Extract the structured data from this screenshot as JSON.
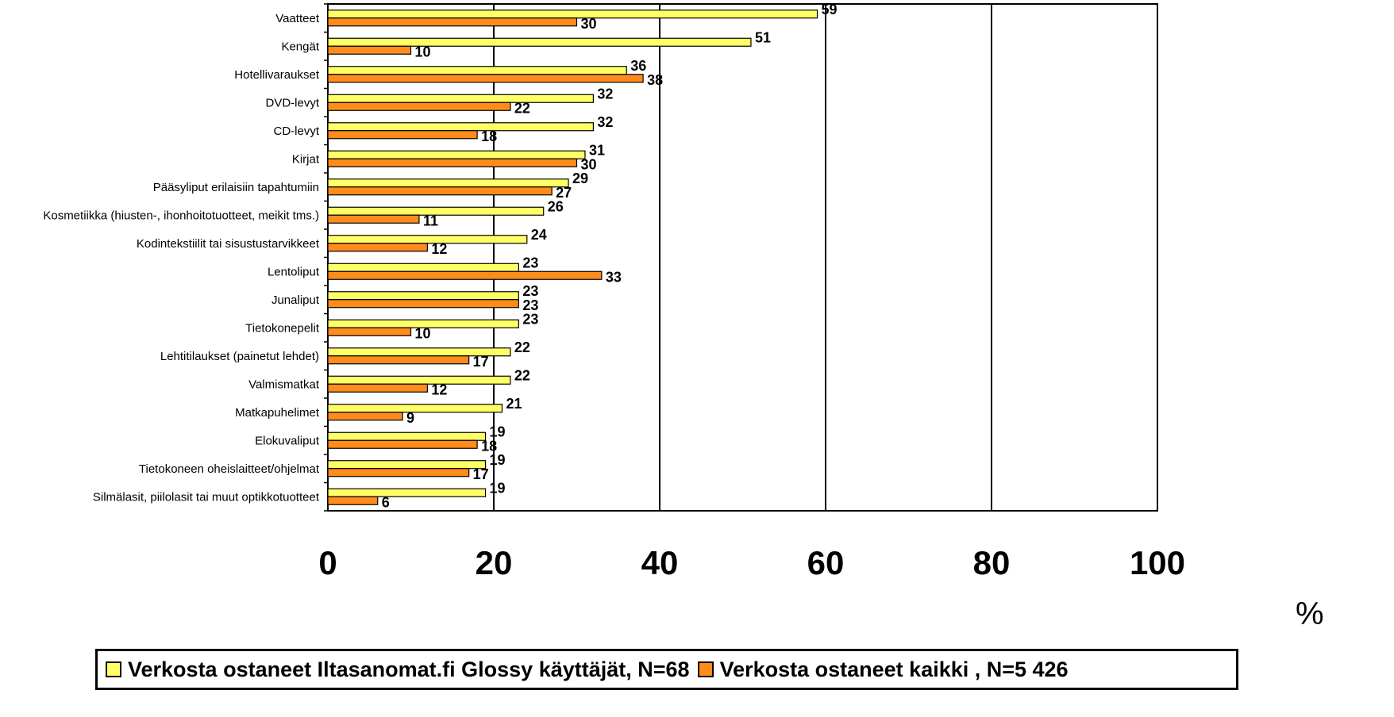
{
  "chart_data": {
    "type": "bar",
    "orientation": "horizontal",
    "categories": [
      "Vaatteet",
      "Kengät",
      "Hotellivaraukset",
      "DVD-levyt",
      "CD-levyt",
      "Kirjat",
      "Pääsyliput erilaisiin tapahtumiin",
      "Kosmetiikka (hiusten-, ihonhoitotuotteet, meikit tms.)",
      "Kodintekstiilit tai sisustustarvikkeet",
      "Lentoliput",
      "Junaliput",
      "Tietokonepelit",
      "Lehtitilaukset (painetut lehdet)",
      "Valmismatkat",
      "Matkapuhelimet",
      "Elokuvaliput",
      "Tietokoneen oheislaitteet/ohjelmat",
      "Silmälasit, piilolasit tai muut optikkotuotteet"
    ],
    "series": [
      {
        "name": "Verkosta ostaneet Iltasanomat.fi Glossy käyttäjät, N=68",
        "color": "#ffff66",
        "values": [
          59,
          51,
          36,
          32,
          32,
          31,
          29,
          26,
          24,
          23,
          23,
          23,
          22,
          22,
          21,
          19,
          19,
          19
        ]
      },
      {
        "name": "Verkosta ostaneet kaikki , N=5 426",
        "color": "#ff8c1a",
        "values": [
          30,
          10,
          38,
          22,
          18,
          30,
          27,
          11,
          12,
          33,
          23,
          10,
          17,
          12,
          9,
          18,
          17,
          6
        ]
      }
    ],
    "xlim": [
      0,
      100
    ],
    "xticks": [
      "0",
      "20",
      "40",
      "60",
      "80",
      "100"
    ],
    "unit": "%",
    "grid": true,
    "legend_position": "bottom"
  }
}
